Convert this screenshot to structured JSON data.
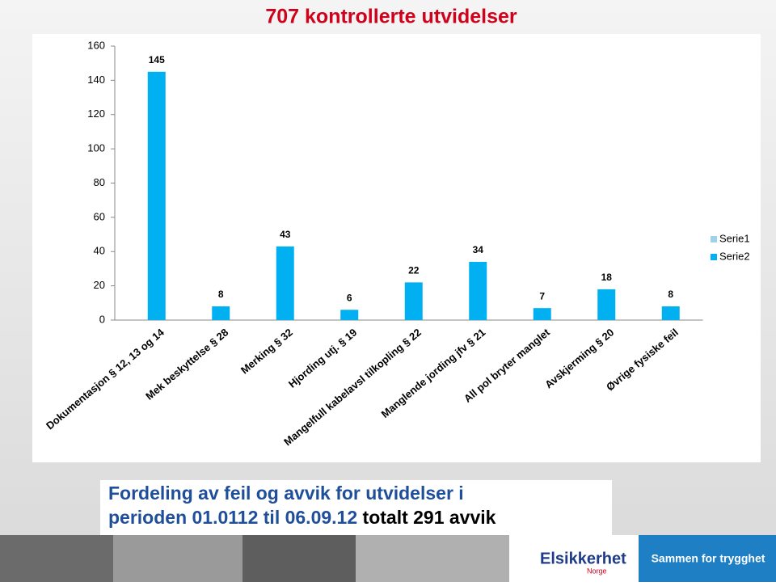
{
  "chart_data": {
    "type": "bar",
    "title": "707 kontrollerte utvidelser",
    "categories": [
      "Dokumentasjon  § 12, 13 og 14",
      "Mek beskyttelse  § 28",
      "Merking  § 32",
      "Hjording utj.  § 19",
      "Mangelfull kabelavsl tilkopling  § 22",
      "Manglende jording jfv  § 21",
      "All pol bryter manglet",
      "Avskjerming  § 20",
      "Øvrige fysiske feil"
    ],
    "series": [
      {
        "name": "Serie1",
        "color": "#9dd3e8",
        "values": [
          0,
          0,
          0,
          0,
          0,
          0,
          0,
          0,
          0
        ]
      },
      {
        "name": "Serie2",
        "color": "#00b0f0",
        "values": [
          145,
          8,
          43,
          6,
          22,
          34,
          7,
          18,
          8
        ]
      }
    ],
    "ylim": [
      0,
      160
    ],
    "yticks": [
      0,
      20,
      40,
      60,
      80,
      100,
      120,
      140,
      160
    ],
    "grid": false,
    "legend": "right"
  },
  "caption": {
    "line1": "Fordeling av feil og avvik for utvidelser i",
    "line2": "perioden 01.0112 til 06.09.12",
    "line2_suffix": " totalt 291 avvik"
  },
  "footer": {
    "logo": "Elsikkerhet",
    "logo_sub": "Norge",
    "tagline": "Sammen for trygghet"
  }
}
